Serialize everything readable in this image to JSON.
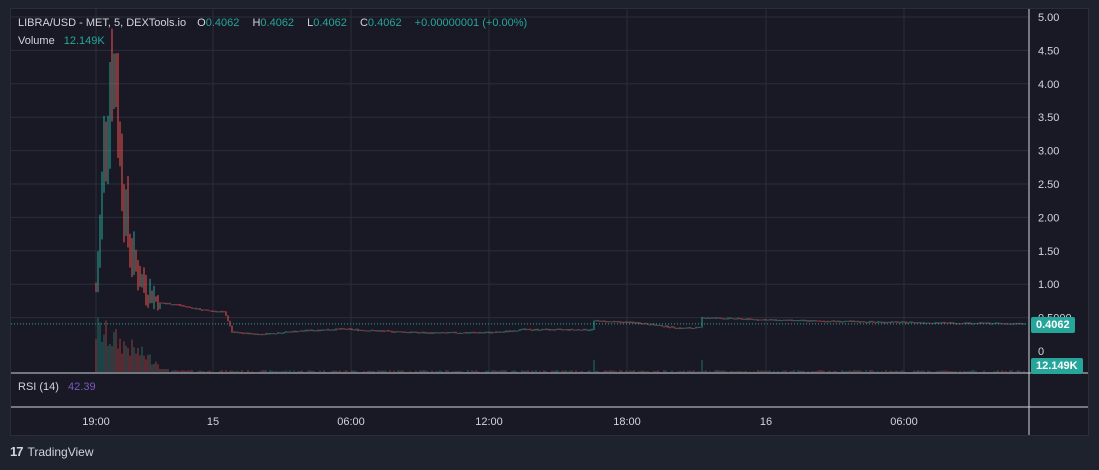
{
  "header": {
    "symbol": "LIBRA/USD - MET, 5, DEXTools.io",
    "o_label": "O",
    "o_value": "0.4062",
    "h_label": "H",
    "h_value": "0.4062",
    "l_label": "L",
    "l_value": "0.4062",
    "c_label": "C",
    "c_value": "0.4062",
    "change": "+0.00000001 (+0.00%)",
    "volume_label": "Volume",
    "volume_value": "12.149K"
  },
  "badges": {
    "price": "0.4062",
    "volume": "12.149K"
  },
  "rsi": {
    "label": "RSI (14)",
    "value": "42.39"
  },
  "footer": {
    "brand": "TradingView"
  },
  "colors": {
    "up": "#26a69a",
    "down": "#ef5350",
    "rsi": "#7e57c2",
    "bg": "#181924",
    "grid": "#2a2e39"
  },
  "chart_data": {
    "type": "candlestick",
    "title": "LIBRA/USD - MET, 5, DEXTools.io",
    "ylim": [
      0,
      5.0
    ],
    "y_ticks": [
      "5.00",
      "4.50",
      "4.00",
      "3.50",
      "3.00",
      "2.50",
      "2.00",
      "1.50",
      "1.00",
      "0.5000",
      "0"
    ],
    "x_ticks": [
      "19:00",
      "15",
      "06:00",
      "12:00",
      "18:00",
      "16",
      "06:00"
    ],
    "last_price": 0.4062,
    "approx_close_series": [
      {
        "t": "19:00",
        "close": 1.2
      },
      {
        "t": "19:30",
        "close": 4.1
      },
      {
        "t": "20:00",
        "close": 2.0
      },
      {
        "t": "21:00",
        "close": 1.0
      },
      {
        "t": "22:00",
        "close": 0.75
      },
      {
        "t": "15",
        "close": 0.55
      },
      {
        "t": "06:00",
        "close": 0.3
      },
      {
        "t": "12:00",
        "close": 0.32
      },
      {
        "t": "18:00",
        "close": 0.45
      },
      {
        "t": "16",
        "close": 0.48
      },
      {
        "t": "06:00",
        "close": 0.42
      },
      {
        "t": "end",
        "close": 0.4062
      }
    ]
  }
}
